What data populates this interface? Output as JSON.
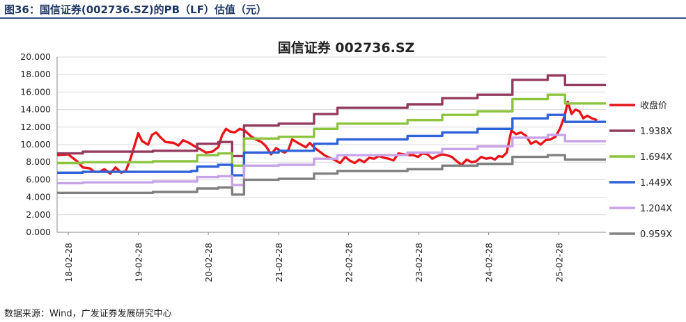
{
  "figure": {
    "title": "图36：国信证券(002736.SZ)的PB（LF）估值（元）",
    "source": "数据来源：Wind，广发证券发展研究中心"
  },
  "chart_data": {
    "type": "line",
    "title": "国信证券 002736.SZ",
    "xlabel": "",
    "ylabel": "",
    "x_tick_labels": [
      "18-02-28",
      "19-02-28",
      "20-02-28",
      "21-02-28",
      "22-02-28",
      "23-02-28",
      "24-02-28",
      "25-02-28"
    ],
    "y_tick_labels": [
      "0.000",
      "2.000",
      "4.000",
      "6.000",
      "8.000",
      "10.000",
      "12.000",
      "14.000",
      "16.000",
      "18.000",
      "20.000"
    ],
    "ylim": [
      0,
      20
    ],
    "x_range": [
      "2018-01-01",
      "2025-10-31"
    ],
    "grid": true,
    "legend_position": "right",
    "series": [
      {
        "name": "收盘价",
        "color": "#e8141a",
        "style": "jagged",
        "points": [
          [
            "2018-01-01",
            8.8
          ],
          [
            "2018-02-28",
            8.9
          ],
          [
            "2018-04-15",
            8.1
          ],
          [
            "2018-05-15",
            7.4
          ],
          [
            "2018-06-20",
            7.3
          ],
          [
            "2018-07-15",
            6.9
          ],
          [
            "2018-08-10",
            6.9
          ],
          [
            "2018-09-05",
            7.2
          ],
          [
            "2018-10-05",
            6.7
          ],
          [
            "2018-11-01",
            7.4
          ],
          [
            "2018-12-01",
            6.8
          ],
          [
            "2018-12-25",
            7.0
          ],
          [
            "2019-01-20",
            8.5
          ],
          [
            "2019-02-28",
            11.3
          ],
          [
            "2019-03-20",
            10.4
          ],
          [
            "2019-04-20",
            10.0
          ],
          [
            "2019-05-10",
            11.1
          ],
          [
            "2019-06-01",
            11.4
          ],
          [
            "2019-06-25",
            10.8
          ],
          [
            "2019-07-20",
            10.3
          ],
          [
            "2019-09-01",
            10.2
          ],
          [
            "2019-09-25",
            9.9
          ],
          [
            "2019-10-20",
            10.5
          ],
          [
            "2019-11-20",
            10.2
          ],
          [
            "2019-12-20",
            9.8
          ],
          [
            "2020-01-15",
            9.5
          ],
          [
            "2020-02-15",
            9.1
          ],
          [
            "2020-03-20",
            9.2
          ],
          [
            "2020-04-20",
            9.7
          ],
          [
            "2020-05-10",
            11.1
          ],
          [
            "2020-05-30",
            11.8
          ],
          [
            "2020-06-20",
            11.5
          ],
          [
            "2020-07-15",
            11.4
          ],
          [
            "2020-08-10",
            11.8
          ],
          [
            "2020-09-05",
            11.6
          ],
          [
            "2020-10-05",
            11.0
          ],
          [
            "2020-11-01",
            10.6
          ],
          [
            "2020-12-01",
            10.3
          ],
          [
            "2020-12-25",
            9.8
          ],
          [
            "2021-01-20",
            8.9
          ],
          [
            "2021-02-15",
            9.6
          ],
          [
            "2021-03-10",
            9.3
          ],
          [
            "2021-04-01",
            9.1
          ],
          [
            "2021-04-20",
            9.4
          ],
          [
            "2021-05-10",
            10.6
          ],
          [
            "2021-06-01",
            10.3
          ],
          [
            "2021-06-25",
            10.0
          ],
          [
            "2021-07-20",
            9.7
          ],
          [
            "2021-08-10",
            10.2
          ],
          [
            "2021-09-05",
            9.6
          ],
          [
            "2021-10-01",
            9.2
          ],
          [
            "2021-10-25",
            8.8
          ],
          [
            "2021-11-20",
            8.5
          ],
          [
            "2021-12-15",
            8.3
          ],
          [
            "2022-01-15",
            7.9
          ],
          [
            "2022-02-10",
            8.6
          ],
          [
            "2022-03-05",
            8.2
          ],
          [
            "2022-04-01",
            7.9
          ],
          [
            "2022-04-25",
            8.3
          ],
          [
            "2022-05-20",
            8.0
          ],
          [
            "2022-06-15",
            8.5
          ],
          [
            "2022-07-10",
            8.4
          ],
          [
            "2022-08-05",
            8.7
          ],
          [
            "2022-09-01",
            8.5
          ],
          [
            "2022-09-25",
            8.4
          ],
          [
            "2022-10-20",
            8.2
          ],
          [
            "2022-11-15",
            9.0
          ],
          [
            "2022-12-10",
            8.9
          ],
          [
            "2023-01-05",
            8.8
          ],
          [
            "2023-02-01",
            8.8
          ],
          [
            "2023-02-25",
            8.6
          ],
          [
            "2023-03-20",
            9.0
          ],
          [
            "2023-04-15",
            8.9
          ],
          [
            "2023-05-10",
            8.4
          ],
          [
            "2023-06-05",
            8.7
          ],
          [
            "2023-07-01",
            8.9
          ],
          [
            "2023-07-25",
            8.8
          ],
          [
            "2023-08-20",
            8.6
          ],
          [
            "2023-09-15",
            8.1
          ],
          [
            "2023-10-10",
            7.7
          ],
          [
            "2023-11-05",
            8.3
          ],
          [
            "2023-12-01",
            8.0
          ],
          [
            "2023-12-25",
            8.1
          ],
          [
            "2024-01-20",
            8.6
          ],
          [
            "2024-02-15",
            8.4
          ],
          [
            "2024-03-10",
            8.5
          ],
          [
            "2024-04-01",
            8.3
          ],
          [
            "2024-04-20",
            8.7
          ],
          [
            "2024-05-10",
            8.6
          ],
          [
            "2024-06-01",
            9.1
          ],
          [
            "2024-06-25",
            11.6
          ],
          [
            "2024-07-20",
            11.2
          ],
          [
            "2024-08-15",
            11.4
          ],
          [
            "2024-09-10",
            11.0
          ],
          [
            "2024-10-05",
            10.1
          ],
          [
            "2024-11-01",
            10.4
          ],
          [
            "2024-11-25",
            10.0
          ],
          [
            "2024-12-20",
            10.5
          ],
          [
            "2025-01-15",
            10.6
          ],
          [
            "2025-02-10",
            10.9
          ],
          [
            "2025-03-05",
            11.8
          ],
          [
            "2025-03-30",
            13.3
          ],
          [
            "2025-04-15",
            14.9
          ],
          [
            "2025-05-05",
            13.5
          ],
          [
            "2025-05-25",
            14.0
          ],
          [
            "2025-06-15",
            13.8
          ],
          [
            "2025-07-05",
            13.0
          ],
          [
            "2025-07-25",
            13.3
          ],
          [
            "2025-08-20",
            13.0
          ],
          [
            "2025-09-15",
            12.8
          ]
        ]
      },
      {
        "name": "1.938X",
        "color": "#943a5e",
        "style": "step",
        "points": [
          [
            "2018-01-01",
            9.0
          ],
          [
            "2018-05-15",
            9.2
          ],
          [
            "2019-02-25",
            9.2
          ],
          [
            "2019-05-15",
            9.3
          ],
          [
            "2019-12-01",
            9.3
          ],
          [
            "2020-01-01",
            10.1
          ],
          [
            "2020-04-20",
            10.3
          ],
          [
            "2020-07-01",
            8.7
          ],
          [
            "2020-09-01",
            12.2
          ],
          [
            "2021-03-01",
            12.4
          ],
          [
            "2021-09-01",
            13.5
          ],
          [
            "2022-01-01",
            14.2
          ],
          [
            "2022-06-01",
            14.2
          ],
          [
            "2023-01-01",
            14.6
          ],
          [
            "2023-07-01",
            15.3
          ],
          [
            "2024-01-01",
            15.7
          ],
          [
            "2024-07-01",
            17.4
          ],
          [
            "2025-01-01",
            17.9
          ],
          [
            "2025-04-01",
            16.8
          ],
          [
            "2025-10-31",
            16.8
          ]
        ]
      },
      {
        "name": "1.694X",
        "color": "#8cc43e",
        "style": "step",
        "points": [
          [
            "2018-01-01",
            7.9
          ],
          [
            "2018-05-15",
            8.0
          ],
          [
            "2019-02-25",
            8.0
          ],
          [
            "2019-05-15",
            8.1
          ],
          [
            "2019-12-01",
            8.1
          ],
          [
            "2020-01-01",
            8.8
          ],
          [
            "2020-04-20",
            9.0
          ],
          [
            "2020-07-01",
            7.6
          ],
          [
            "2020-09-01",
            10.7
          ],
          [
            "2021-03-01",
            10.9
          ],
          [
            "2021-09-01",
            11.8
          ],
          [
            "2022-01-01",
            12.4
          ],
          [
            "2022-06-01",
            12.4
          ],
          [
            "2023-01-01",
            12.8
          ],
          [
            "2023-07-01",
            13.4
          ],
          [
            "2024-01-01",
            13.8
          ],
          [
            "2024-07-01",
            15.2
          ],
          [
            "2025-01-01",
            15.7
          ],
          [
            "2025-04-01",
            14.7
          ],
          [
            "2025-10-31",
            14.7
          ]
        ]
      },
      {
        "name": "1.449X",
        "color": "#2f62d8",
        "style": "step",
        "points": [
          [
            "2018-01-01",
            6.8
          ],
          [
            "2018-05-15",
            6.9
          ],
          [
            "2019-02-25",
            6.9
          ],
          [
            "2019-05-15",
            6.9
          ],
          [
            "2019-12-01",
            7.0
          ],
          [
            "2020-01-01",
            7.5
          ],
          [
            "2020-04-20",
            7.7
          ],
          [
            "2020-07-01",
            6.5
          ],
          [
            "2020-09-01",
            9.1
          ],
          [
            "2021-03-01",
            9.3
          ],
          [
            "2021-09-01",
            10.1
          ],
          [
            "2022-01-01",
            10.6
          ],
          [
            "2022-06-01",
            10.6
          ],
          [
            "2023-01-01",
            11.0
          ],
          [
            "2023-07-01",
            11.4
          ],
          [
            "2024-01-01",
            11.8
          ],
          [
            "2024-07-01",
            13.0
          ],
          [
            "2025-01-01",
            13.4
          ],
          [
            "2025-04-01",
            12.6
          ],
          [
            "2025-10-31",
            12.6
          ]
        ]
      },
      {
        "name": "1.204X",
        "color": "#c7a3e8",
        "style": "step",
        "points": [
          [
            "2018-01-01",
            5.6
          ],
          [
            "2018-05-15",
            5.7
          ],
          [
            "2019-02-25",
            5.7
          ],
          [
            "2019-05-15",
            5.8
          ],
          [
            "2019-12-01",
            5.8
          ],
          [
            "2020-01-01",
            6.3
          ],
          [
            "2020-04-20",
            6.4
          ],
          [
            "2020-07-01",
            5.4
          ],
          [
            "2020-09-01",
            7.6
          ],
          [
            "2021-03-01",
            7.7
          ],
          [
            "2021-09-01",
            8.4
          ],
          [
            "2022-01-01",
            8.8
          ],
          [
            "2022-06-01",
            8.8
          ],
          [
            "2023-01-01",
            9.1
          ],
          [
            "2023-07-01",
            9.5
          ],
          [
            "2024-01-01",
            9.8
          ],
          [
            "2024-07-01",
            10.8
          ],
          [
            "2025-01-01",
            11.1
          ],
          [
            "2025-04-01",
            10.4
          ],
          [
            "2025-10-31",
            10.4
          ]
        ]
      },
      {
        "name": "0.959X",
        "color": "#808080",
        "style": "step",
        "points": [
          [
            "2018-01-01",
            4.5
          ],
          [
            "2018-05-15",
            4.5
          ],
          [
            "2019-02-25",
            4.5
          ],
          [
            "2019-05-15",
            4.6
          ],
          [
            "2019-12-01",
            4.6
          ],
          [
            "2020-01-01",
            5.0
          ],
          [
            "2020-04-20",
            5.1
          ],
          [
            "2020-07-01",
            4.3
          ],
          [
            "2020-09-01",
            6.0
          ],
          [
            "2021-03-01",
            6.1
          ],
          [
            "2021-09-01",
            6.7
          ],
          [
            "2022-01-01",
            7.0
          ],
          [
            "2022-06-01",
            7.0
          ],
          [
            "2023-01-01",
            7.2
          ],
          [
            "2023-07-01",
            7.6
          ],
          [
            "2024-01-01",
            7.8
          ],
          [
            "2024-07-01",
            8.6
          ],
          [
            "2025-01-01",
            8.8
          ],
          [
            "2025-04-01",
            8.3
          ],
          [
            "2025-10-31",
            8.3
          ]
        ]
      }
    ]
  }
}
